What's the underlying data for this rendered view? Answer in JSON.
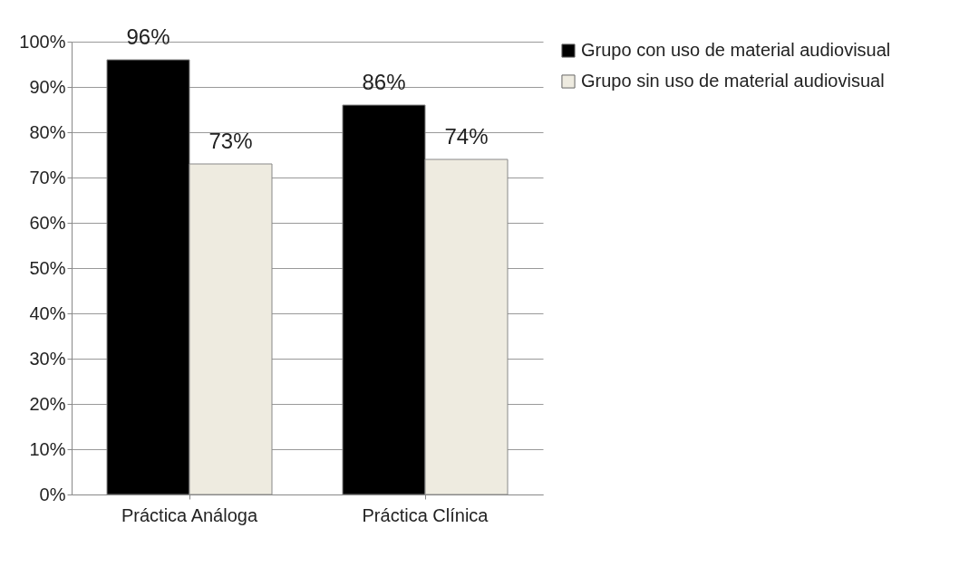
{
  "chart_data": {
    "type": "bar",
    "categories": [
      "Práctica Análoga",
      "Práctica Clínica"
    ],
    "series": [
      {
        "name": "Grupo con uso de material audiovisual",
        "color": "#000000",
        "values": [
          96,
          86
        ],
        "value_labels": [
          "96%",
          "86%"
        ]
      },
      {
        "name": "Grupo sin uso de material audiovisual",
        "color": "#eeebe0",
        "values": [
          73,
          74
        ],
        "value_labels": [
          "73%",
          "74%"
        ]
      }
    ],
    "ylim": [
      0,
      100
    ],
    "yticks": [
      {
        "value": 0,
        "label": "0%"
      },
      {
        "value": 10,
        "label": "10%"
      },
      {
        "value": 20,
        "label": "20%"
      },
      {
        "value": 30,
        "label": "30%"
      },
      {
        "value": 40,
        "label": "40%"
      },
      {
        "value": 50,
        "label": "50%"
      },
      {
        "value": 60,
        "label": "60%"
      },
      {
        "value": 70,
        "label": "70%"
      },
      {
        "value": 80,
        "label": "80%"
      },
      {
        "value": 90,
        "label": "90%"
      },
      {
        "value": 100,
        "label": "100%"
      }
    ],
    "grid": "y",
    "legend": "right"
  }
}
